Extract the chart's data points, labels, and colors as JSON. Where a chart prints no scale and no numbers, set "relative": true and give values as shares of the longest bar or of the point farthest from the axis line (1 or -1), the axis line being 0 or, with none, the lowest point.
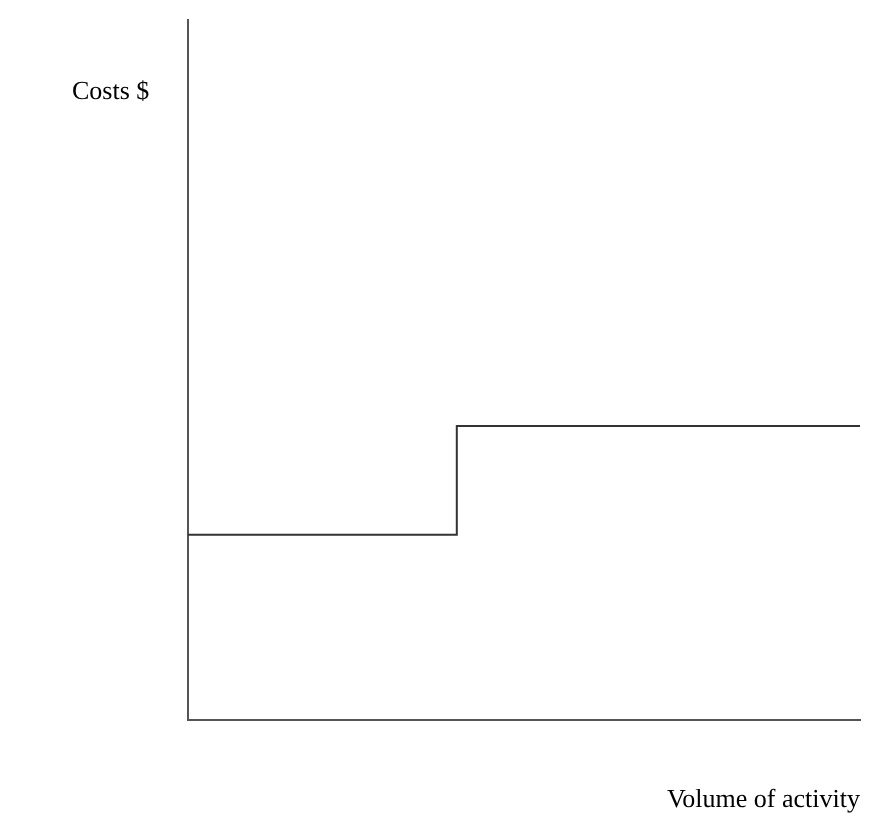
{
  "chart_data": {
    "type": "step",
    "relative": true,
    "annotations": [
      "Costs $"
    ],
    "xlabel": "Volume of activity",
    "categories": [
      null,
      null,
      null,
      null,
      null,
      null
    ],
    "series": [
      {
        "color": "#333333",
        "values": [
          0.63,
          0.63,
          0.63,
          1,
          1,
          1
        ]
      }
    ],
    "grid": false,
    "legend": false,
    "marker": "none",
    "tick_labels": false
  }
}
